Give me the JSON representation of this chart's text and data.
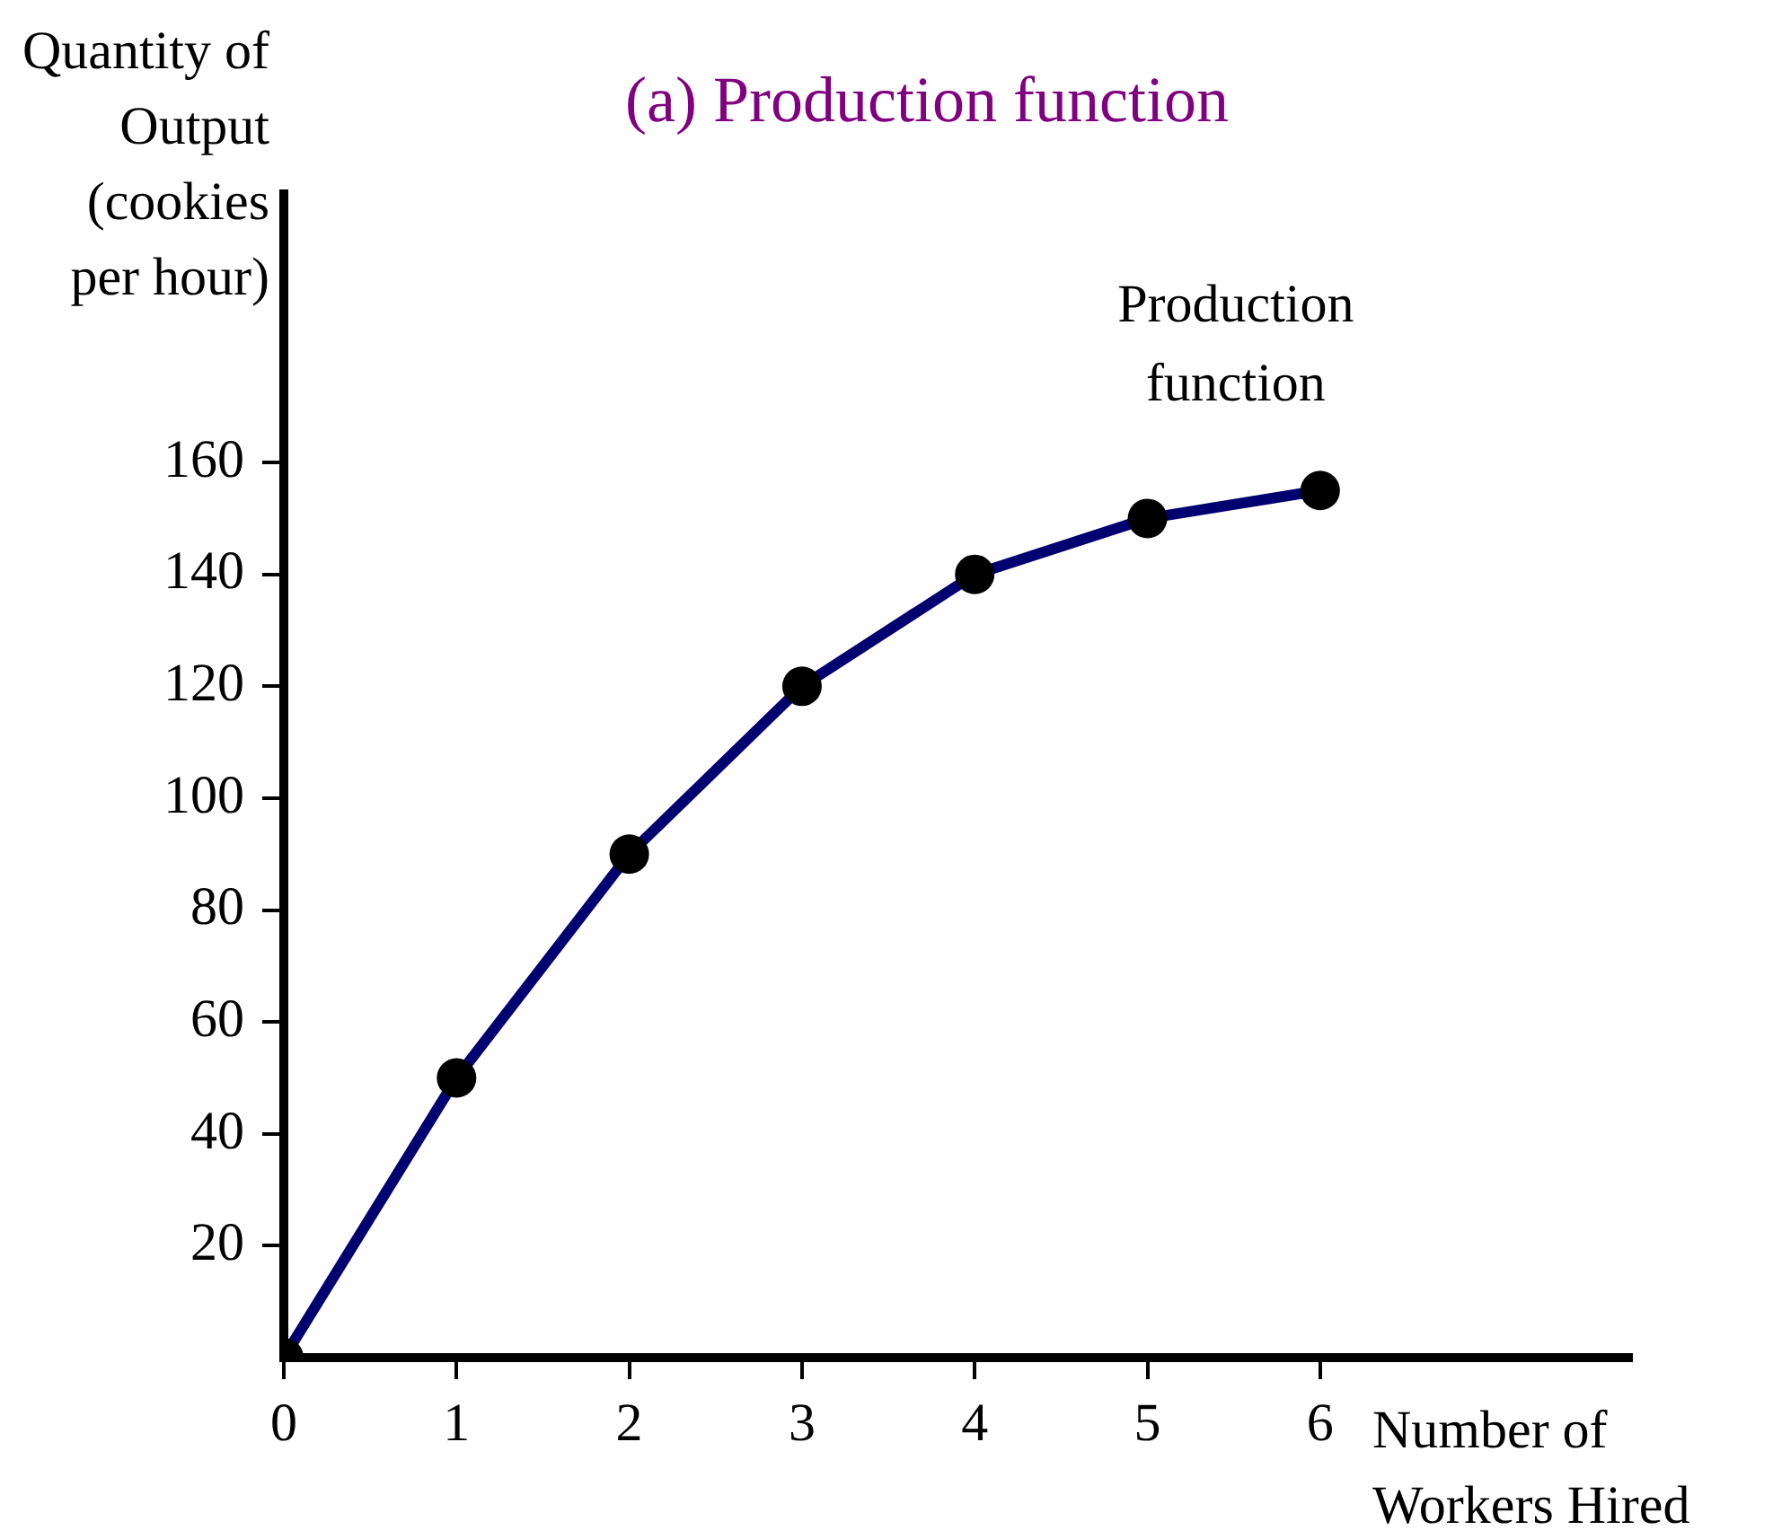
{
  "chart_data": {
    "type": "line",
    "title": "(a) Production function",
    "xlabel": "Number of Workers Hired",
    "ylabel": "Quantity of Output (cookies per hour)",
    "x": [
      0,
      1,
      2,
      3,
      4,
      5,
      6
    ],
    "series": [
      {
        "name": "Production function",
        "color": "#000070",
        "values": [
          0,
          50,
          90,
          120,
          140,
          150,
          155
        ]
      }
    ],
    "xlim": [
      0,
      7.8
    ],
    "xticks": [
      0,
      1,
      2,
      3,
      4,
      5,
      6
    ],
    "ylim": [
      0,
      208
    ],
    "yticks": [
      20,
      40,
      60,
      80,
      100,
      120,
      140,
      160
    ],
    "grid": false,
    "legend": false,
    "marker": "circle",
    "line_style": "solid"
  }
}
